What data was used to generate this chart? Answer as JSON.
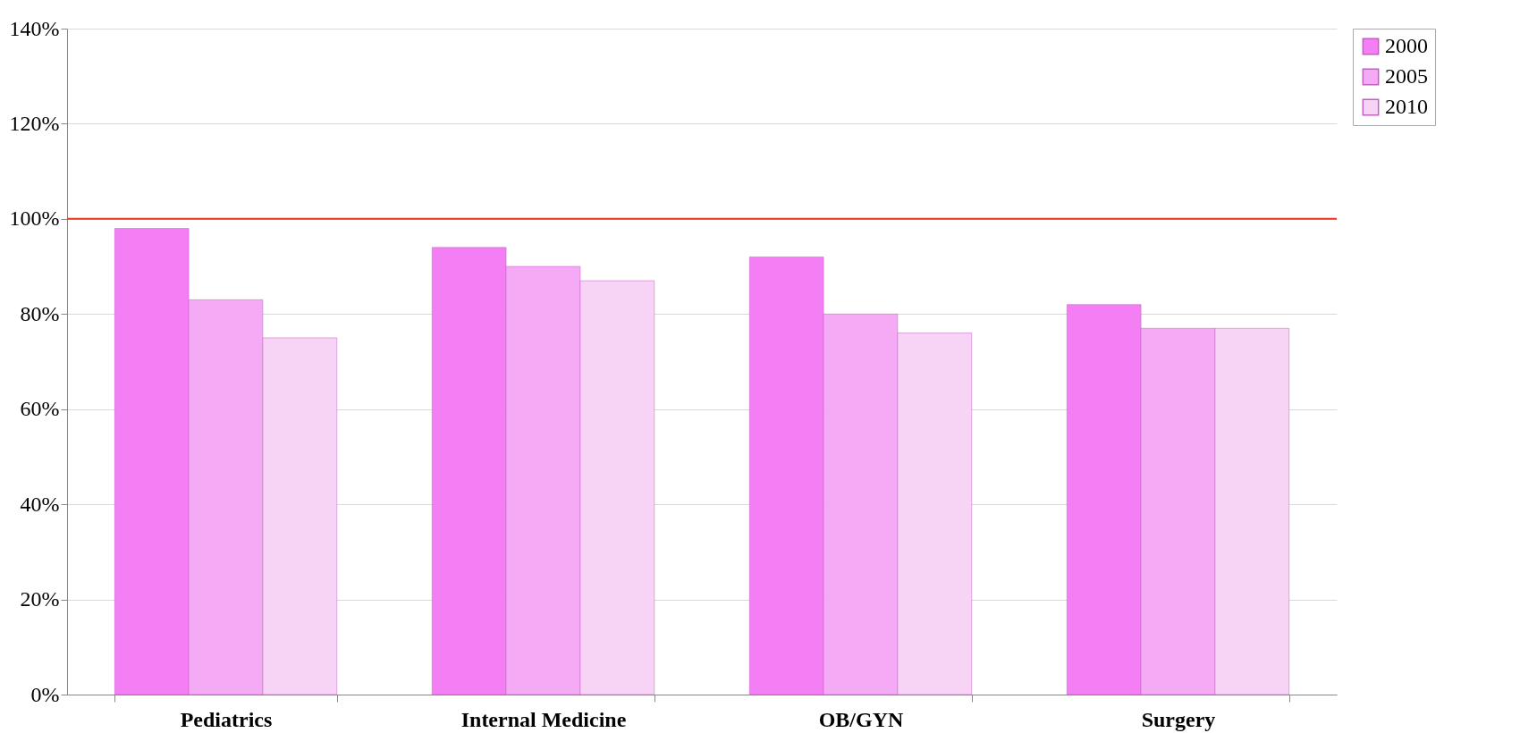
{
  "chart_data": {
    "type": "bar",
    "categories": [
      "Pediatrics",
      "Internal Medicine",
      "OB/GYN",
      "Surgery"
    ],
    "series": [
      {
        "name": "2000",
        "color": "#f47ef4",
        "values": [
          98,
          94,
          92,
          82
        ]
      },
      {
        "name": "2005",
        "color": "#f5aaf5",
        "values": [
          83,
          90,
          80,
          77
        ]
      },
      {
        "name": "2010",
        "color": "#f7d4f5",
        "values": [
          75,
          87,
          76,
          77
        ]
      }
    ],
    "ylim": [
      0,
      140
    ],
    "yticks": [
      {
        "value": 0,
        "label": "0%"
      },
      {
        "value": 20,
        "label": "20%"
      },
      {
        "value": 40,
        "label": "40%"
      },
      {
        "value": 60,
        "label": "60%"
      },
      {
        "value": 80,
        "label": "80%"
      },
      {
        "value": 100,
        "label": "100%"
      },
      {
        "value": 120,
        "label": "120%"
      },
      {
        "value": 140,
        "label": "140%"
      }
    ],
    "ref_lines": [
      {
        "axis": "y",
        "value": 100,
        "color": "#e8351e"
      }
    ],
    "grid": "y",
    "legend": "top right"
  }
}
